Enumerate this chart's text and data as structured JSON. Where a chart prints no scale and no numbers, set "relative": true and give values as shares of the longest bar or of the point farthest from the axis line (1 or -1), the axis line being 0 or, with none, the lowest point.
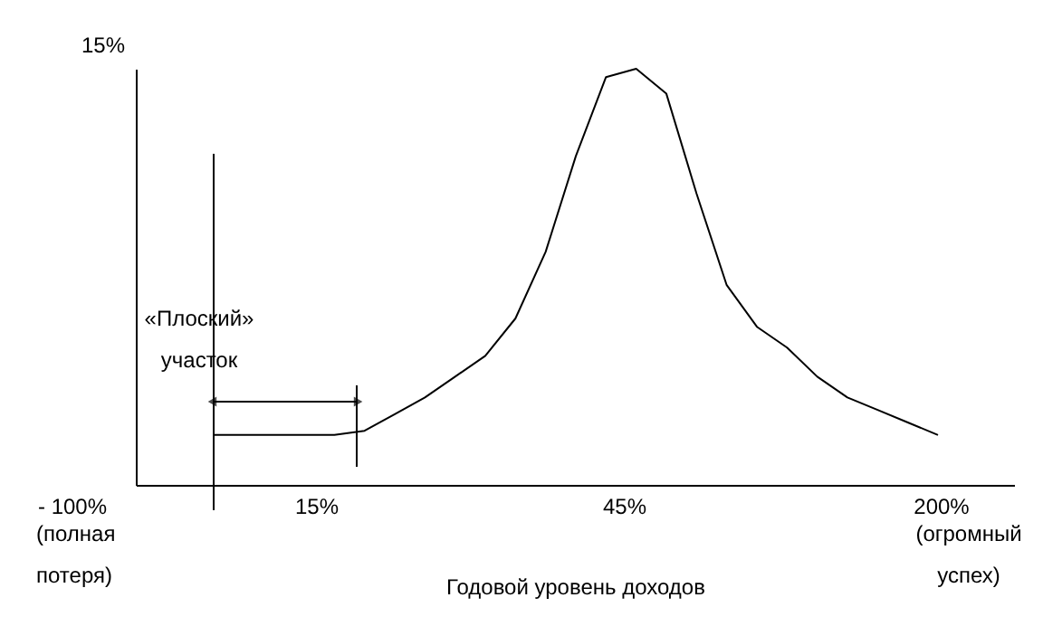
{
  "chart_data": {
    "type": "line",
    "relative": true,
    "xlabel": "Годовой уровень доходов",
    "categories": [
      null,
      null,
      null,
      null,
      null,
      null,
      null,
      null,
      null,
      null,
      null,
      null,
      null,
      null,
      null,
      null,
      null,
      null,
      null,
      null,
      null,
      null,
      null,
      null,
      null
    ],
    "series": [
      {
        "color": "#000000",
        "values": [
          0.12,
          0.12,
          0.12,
          0.12,
          0.12,
          0.13,
          0.17,
          0.21,
          0.26,
          0.31,
          0.4,
          0.56,
          0.79,
          0.98,
          1,
          0.94,
          0.7,
          0.48,
          0.38,
          0.33,
          0.26,
          0.21,
          0.18,
          0.15,
          0.12
        ]
      }
    ],
    "annotations": [
      "15%",
      "- 100%",
      "(полная потеря)",
      "15%",
      "45%",
      "200%",
      "(огромный успех)",
      "«Плоский» участок"
    ],
    "grid": false,
    "marker": "none",
    "line_style": "solid"
  }
}
